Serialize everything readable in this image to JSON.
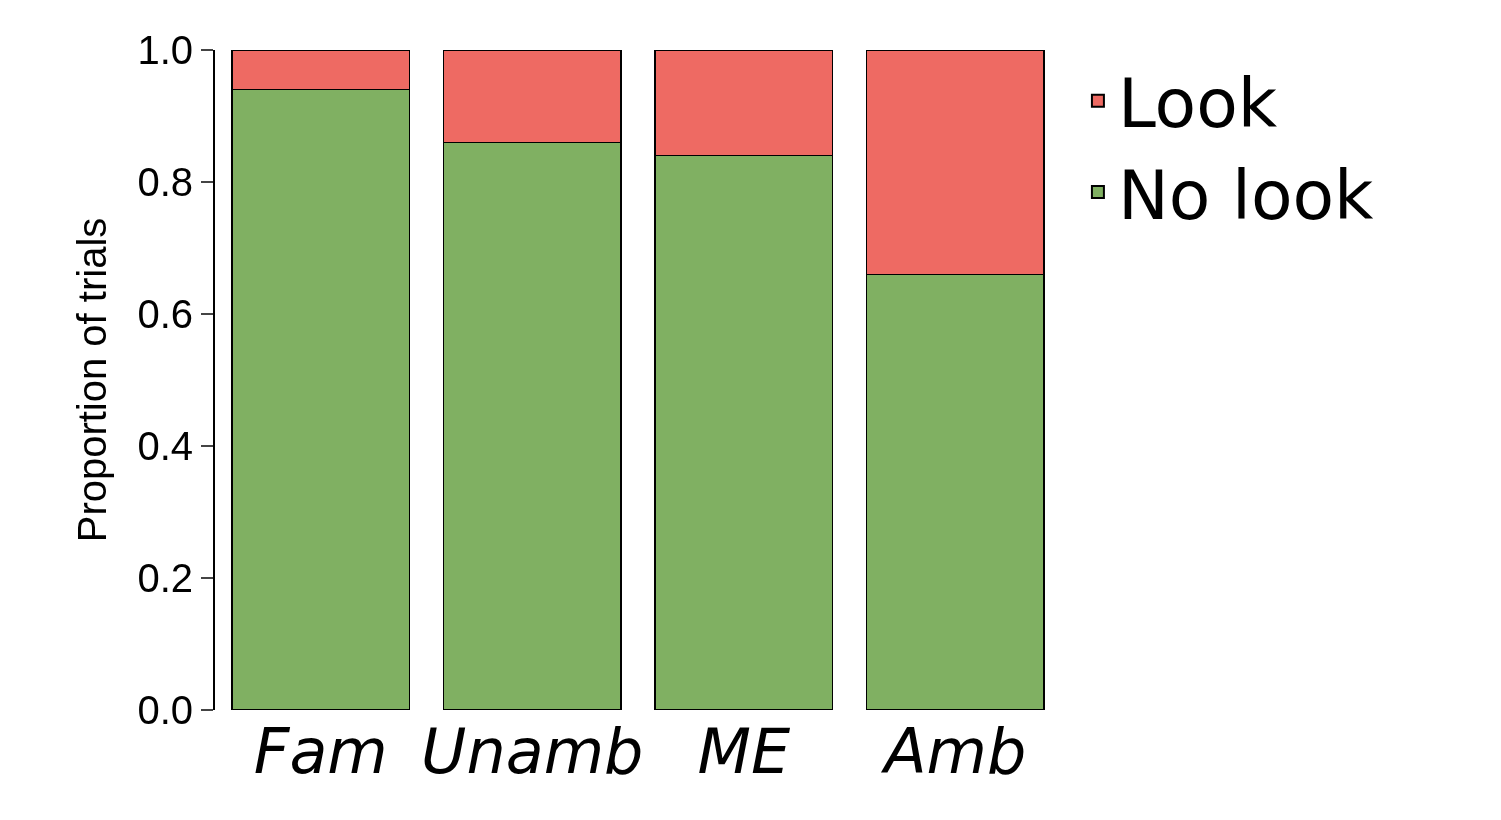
{
  "chart_data": {
    "type": "bar",
    "stacked": true,
    "ylabel": "Proportion of trials",
    "categories": [
      "Fam",
      "Unamb",
      "ME",
      "Amb"
    ],
    "series": [
      {
        "name": "No look",
        "color": "#80b062",
        "values": [
          0.94,
          0.86,
          0.84,
          0.66
        ]
      },
      {
        "name": "Look",
        "color": "#ee6a63",
        "values": [
          0.06,
          0.14,
          0.16,
          0.34
        ]
      }
    ],
    "ylim": [
      0,
      1
    ],
    "yticks": [
      {
        "value": 0,
        "label": "0.0"
      },
      {
        "value": 0.2,
        "label": "0.2"
      },
      {
        "value": 0.4,
        "label": "0.4"
      },
      {
        "value": 0.6,
        "label": "0.6"
      },
      {
        "value": 0.8,
        "label": "0.8"
      },
      {
        "value": 1,
        "label": "1.0"
      }
    ],
    "grid": false,
    "legend": "top right"
  }
}
